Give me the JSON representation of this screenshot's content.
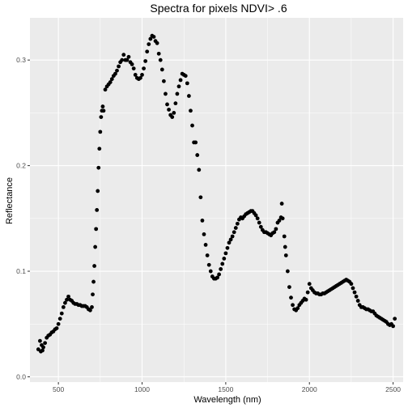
{
  "chart_data": {
    "type": "scatter",
    "title": "Spectra for pixels NDVI> .6",
    "xlabel": "Wavelength (nm)",
    "ylabel": "Reflectance",
    "xlim": [
      330,
      2560
    ],
    "ylim": [
      -0.005,
      0.34
    ],
    "x_ticks": [
      500,
      1000,
      1500,
      2000,
      2500
    ],
    "x_tick_labels": [
      "500",
      "1000",
      "1500",
      "2000",
      "2500"
    ],
    "y_ticks": [
      0.0,
      0.1,
      0.2,
      0.3
    ],
    "y_tick_labels": [
      "0.0",
      "0.1",
      "0.2",
      "0.3"
    ],
    "grid": true,
    "colors": {
      "panel": "#ebebeb",
      "grid": "#ffffff",
      "point": "#000000"
    },
    "series": [
      {
        "points": [
          [
            380,
            0.026
          ],
          [
            390,
            0.034
          ],
          [
            395,
            0.024
          ],
          [
            400,
            0.03
          ],
          [
            405,
            0.025
          ],
          [
            410,
            0.028
          ],
          [
            420,
            0.032
          ],
          [
            430,
            0.037
          ],
          [
            440,
            0.039
          ],
          [
            450,
            0.04
          ],
          [
            460,
            0.042
          ],
          [
            470,
            0.043
          ],
          [
            480,
            0.045
          ],
          [
            490,
            0.046
          ],
          [
            500,
            0.05
          ],
          [
            510,
            0.055
          ],
          [
            520,
            0.06
          ],
          [
            530,
            0.066
          ],
          [
            540,
            0.07
          ],
          [
            550,
            0.073
          ],
          [
            560,
            0.076
          ],
          [
            570,
            0.073
          ],
          [
            580,
            0.072
          ],
          [
            590,
            0.07
          ],
          [
            600,
            0.069
          ],
          [
            610,
            0.069
          ],
          [
            620,
            0.068
          ],
          [
            630,
            0.068
          ],
          [
            640,
            0.067
          ],
          [
            650,
            0.067
          ],
          [
            660,
            0.067
          ],
          [
            670,
            0.066
          ],
          [
            680,
            0.064
          ],
          [
            690,
            0.063
          ],
          [
            700,
            0.066
          ],
          [
            705,
            0.078
          ],
          [
            710,
            0.09
          ],
          [
            715,
            0.105
          ],
          [
            720,
            0.123
          ],
          [
            725,
            0.14
          ],
          [
            730,
            0.158
          ],
          [
            735,
            0.176
          ],
          [
            740,
            0.198
          ],
          [
            745,
            0.216
          ],
          [
            750,
            0.232
          ],
          [
            755,
            0.246
          ],
          [
            760,
            0.252
          ],
          [
            765,
            0.256
          ],
          [
            770,
            0.252
          ],
          [
            780,
            0.272
          ],
          [
            790,
            0.275
          ],
          [
            800,
            0.277
          ],
          [
            810,
            0.279
          ],
          [
            820,
            0.282
          ],
          [
            830,
            0.285
          ],
          [
            840,
            0.287
          ],
          [
            850,
            0.29
          ],
          [
            860,
            0.294
          ],
          [
            870,
            0.298
          ],
          [
            880,
            0.3
          ],
          [
            890,
            0.305
          ],
          [
            900,
            0.3
          ],
          [
            910,
            0.3
          ],
          [
            920,
            0.303
          ],
          [
            930,
            0.298
          ],
          [
            940,
            0.296
          ],
          [
            950,
            0.292
          ],
          [
            960,
            0.286
          ],
          [
            970,
            0.283
          ],
          [
            980,
            0.282
          ],
          [
            990,
            0.283
          ],
          [
            1000,
            0.286
          ],
          [
            1010,
            0.292
          ],
          [
            1020,
            0.299
          ],
          [
            1030,
            0.308
          ],
          [
            1040,
            0.315
          ],
          [
            1050,
            0.32
          ],
          [
            1060,
            0.323
          ],
          [
            1070,
            0.322
          ],
          [
            1080,
            0.318
          ],
          [
            1090,
            0.316
          ],
          [
            1100,
            0.306
          ],
          [
            1110,
            0.3
          ],
          [
            1120,
            0.291
          ],
          [
            1130,
            0.28
          ],
          [
            1140,
            0.268
          ],
          [
            1150,
            0.258
          ],
          [
            1160,
            0.253
          ],
          [
            1170,
            0.248
          ],
          [
            1180,
            0.246
          ],
          [
            1190,
            0.25
          ],
          [
            1200,
            0.259
          ],
          [
            1210,
            0.268
          ],
          [
            1220,
            0.275
          ],
          [
            1230,
            0.281
          ],
          [
            1240,
            0.287
          ],
          [
            1250,
            0.286
          ],
          [
            1260,
            0.285
          ],
          [
            1270,
            0.278
          ],
          [
            1280,
            0.266
          ],
          [
            1290,
            0.252
          ],
          [
            1300,
            0.238
          ],
          [
            1310,
            0.222
          ],
          [
            1320,
            0.222
          ],
          [
            1330,
            0.21
          ],
          [
            1340,
            0.196
          ],
          [
            1350,
            0.17
          ],
          [
            1360,
            0.148
          ],
          [
            1370,
            0.135
          ],
          [
            1380,
            0.125
          ],
          [
            1390,
            0.115
          ],
          [
            1400,
            0.106
          ],
          [
            1410,
            0.1
          ],
          [
            1420,
            0.095
          ],
          [
            1430,
            0.093
          ],
          [
            1440,
            0.093
          ],
          [
            1450,
            0.094
          ],
          [
            1460,
            0.097
          ],
          [
            1470,
            0.102
          ],
          [
            1480,
            0.107
          ],
          [
            1490,
            0.112
          ],
          [
            1500,
            0.117
          ],
          [
            1510,
            0.122
          ],
          [
            1520,
            0.127
          ],
          [
            1530,
            0.13
          ],
          [
            1540,
            0.133
          ],
          [
            1550,
            0.137
          ],
          [
            1560,
            0.141
          ],
          [
            1570,
            0.145
          ],
          [
            1580,
            0.149
          ],
          [
            1590,
            0.151
          ],
          [
            1600,
            0.15
          ],
          [
            1610,
            0.152
          ],
          [
            1620,
            0.154
          ],
          [
            1630,
            0.155
          ],
          [
            1640,
            0.156
          ],
          [
            1650,
            0.157
          ],
          [
            1660,
            0.157
          ],
          [
            1670,
            0.155
          ],
          [
            1680,
            0.153
          ],
          [
            1690,
            0.15
          ],
          [
            1700,
            0.146
          ],
          [
            1710,
            0.142
          ],
          [
            1720,
            0.139
          ],
          [
            1730,
            0.137
          ],
          [
            1740,
            0.137
          ],
          [
            1750,
            0.136
          ],
          [
            1760,
            0.135
          ],
          [
            1770,
            0.134
          ],
          [
            1780,
            0.136
          ],
          [
            1790,
            0.137
          ],
          [
            1800,
            0.14
          ],
          [
            1810,
            0.146
          ],
          [
            1820,
            0.148
          ],
          [
            1830,
            0.151
          ],
          [
            1835,
            0.164
          ],
          [
            1840,
            0.15
          ],
          [
            1850,
            0.133
          ],
          [
            1855,
            0.123
          ],
          [
            1860,
            0.115
          ],
          [
            1870,
            0.1
          ],
          [
            1880,
            0.085
          ],
          [
            1890,
            0.075
          ],
          [
            1900,
            0.068
          ],
          [
            1910,
            0.064
          ],
          [
            1920,
            0.063
          ],
          [
            1930,
            0.065
          ],
          [
            1940,
            0.068
          ],
          [
            1950,
            0.07
          ],
          [
            1960,
            0.072
          ],
          [
            1970,
            0.074
          ],
          [
            1980,
            0.073
          ],
          [
            1990,
            0.08
          ],
          [
            2000,
            0.088
          ],
          [
            2010,
            0.084
          ],
          [
            2020,
            0.082
          ],
          [
            2030,
            0.08
          ],
          [
            2040,
            0.079
          ],
          [
            2050,
            0.079
          ],
          [
            2060,
            0.078
          ],
          [
            2070,
            0.078
          ],
          [
            2080,
            0.079
          ],
          [
            2090,
            0.079
          ],
          [
            2100,
            0.08
          ],
          [
            2110,
            0.081
          ],
          [
            2120,
            0.082
          ],
          [
            2130,
            0.083
          ],
          [
            2140,
            0.084
          ],
          [
            2150,
            0.085
          ],
          [
            2160,
            0.086
          ],
          [
            2170,
            0.087
          ],
          [
            2180,
            0.088
          ],
          [
            2190,
            0.089
          ],
          [
            2200,
            0.09
          ],
          [
            2210,
            0.091
          ],
          [
            2220,
            0.092
          ],
          [
            2230,
            0.091
          ],
          [
            2240,
            0.09
          ],
          [
            2250,
            0.088
          ],
          [
            2260,
            0.084
          ],
          [
            2270,
            0.08
          ],
          [
            2280,
            0.076
          ],
          [
            2290,
            0.072
          ],
          [
            2300,
            0.068
          ],
          [
            2310,
            0.066
          ],
          [
            2320,
            0.066
          ],
          [
            2330,
            0.065
          ],
          [
            2340,
            0.064
          ],
          [
            2350,
            0.064
          ],
          [
            2360,
            0.063
          ],
          [
            2370,
            0.062
          ],
          [
            2380,
            0.062
          ],
          [
            2390,
            0.06
          ],
          [
            2400,
            0.058
          ],
          [
            2410,
            0.057
          ],
          [
            2420,
            0.056
          ],
          [
            2430,
            0.055
          ],
          [
            2440,
            0.054
          ],
          [
            2450,
            0.053
          ],
          [
            2460,
            0.052
          ],
          [
            2470,
            0.05
          ],
          [
            2480,
            0.049
          ],
          [
            2490,
            0.05
          ],
          [
            2500,
            0.048
          ],
          [
            2510,
            0.055
          ]
        ]
      }
    ]
  }
}
